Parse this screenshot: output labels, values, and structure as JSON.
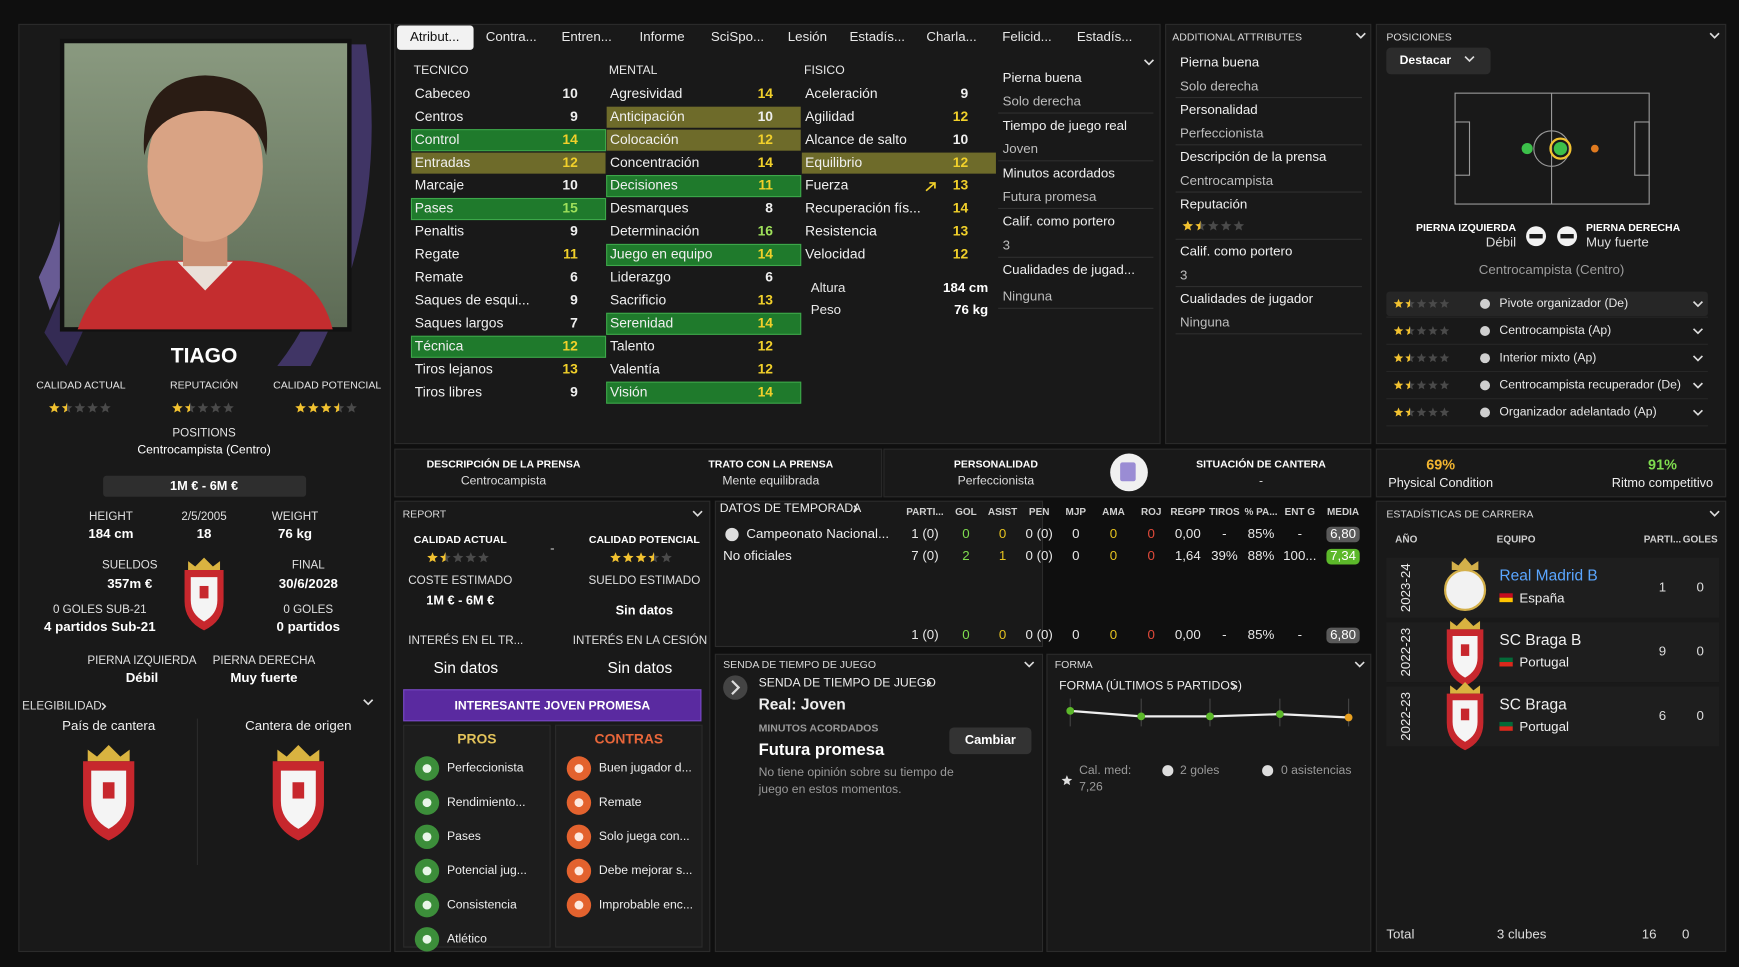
{
  "tabs": [
    "Atribut...",
    "Contra...",
    "Entren...",
    "Informe",
    "SciSpo...",
    "Lesión",
    "Estadís...",
    "Charla...",
    "Felicid...",
    "Estadís..."
  ],
  "profile": {
    "name": "TIAGO",
    "ratings": [
      {
        "label": "CALIDAD ACTUAL",
        "stars": 1.5
      },
      {
        "label": "REPUTACIÓN",
        "stars": 1.5
      },
      {
        "label": "CALIDAD POTENCIAL",
        "stars": 3.5
      }
    ],
    "positions_label": "POSITIONS",
    "position": "Centrocampista (Centro)",
    "value": "1M € - 6M €",
    "facts": [
      {
        "label": "HEIGHT",
        "value": "184 cm"
      },
      {
        "label": "2/5/2005",
        "value": "18"
      },
      {
        "label": "WEIGHT",
        "value": "76 kg"
      },
      {
        "label": "SUELDOS",
        "value": "357m €"
      },
      {
        "label": "FINAL",
        "value": "30/6/2028"
      },
      {
        "label": "0 GOLES SUB-21",
        "value": "4 partidos Sub-21"
      },
      {
        "label": "0 GOLES",
        "value": "0 partidos"
      },
      {
        "label": "PIERNA IZQUIERDA",
        "value": "Débil"
      },
      {
        "label": "PIERNA DERECHA",
        "value": "Muy fuerte"
      }
    ],
    "eligibility": "ELEGIBILIDAD",
    "youth_nation": "País de cantera",
    "youth_club": "Cantera de origen"
  },
  "attributes": [
    {
      "title": "TECNICO",
      "items": [
        {
          "name": "Cabeceo",
          "value": 10
        },
        {
          "name": "Centros",
          "value": 9
        },
        {
          "name": "Control",
          "value": 14,
          "highlight": "#1f7a2c"
        },
        {
          "name": "Entradas",
          "value": 12,
          "highlight": "#6e6b2a"
        },
        {
          "name": "Marcaje",
          "value": 10
        },
        {
          "name": "Pases",
          "value": 15,
          "highlight": "#1f7a2c"
        },
        {
          "name": "Penaltis",
          "value": 9
        },
        {
          "name": "Regate",
          "value": 11
        },
        {
          "name": "Remate",
          "value": 6
        },
        {
          "name": "Saques de esqui...",
          "value": 9
        },
        {
          "name": "Saques largos",
          "value": 7
        },
        {
          "name": "Técnica",
          "value": 12,
          "highlight": "#1f7a2c"
        },
        {
          "name": "Tiros lejanos",
          "value": 13
        },
        {
          "name": "Tiros libres",
          "value": 9
        }
      ]
    },
    {
      "title": "MENTAL",
      "items": [
        {
          "name": "Agresividad",
          "value": 14
        },
        {
          "name": "Anticipación",
          "value": 10,
          "highlight": "#6e6b2a"
        },
        {
          "name": "Colocación",
          "value": 12,
          "highlight": "#6e6b2a"
        },
        {
          "name": "Concentración",
          "value": 14
        },
        {
          "name": "Decisiones",
          "value": 11,
          "highlight": "#1f7a2c"
        },
        {
          "name": "Desmarques",
          "value": 8
        },
        {
          "name": "Determinación",
          "value": 16
        },
        {
          "name": "Juego en equipo",
          "value": 14,
          "highlight": "#1f7a2c"
        },
        {
          "name": "Liderazgo",
          "value": 6
        },
        {
          "name": "Sacrificio",
          "value": 13
        },
        {
          "name": "Serenidad",
          "value": 14,
          "highlight": "#1f7a2c"
        },
        {
          "name": "Talento",
          "value": 12
        },
        {
          "name": "Valentía",
          "value": 12
        },
        {
          "name": "Visión",
          "value": 14,
          "highlight": "#1f7a2c"
        }
      ]
    },
    {
      "title": "FISICO",
      "items": [
        {
          "name": "Aceleración",
          "value": 9
        },
        {
          "name": "Agilidad",
          "value": 12
        },
        {
          "name": "Alcance de salto",
          "value": 10
        },
        {
          "name": "Equilibrio",
          "value": 12,
          "highlight": "#6e6b2a"
        },
        {
          "name": "Fuerza",
          "value": 13
        },
        {
          "name": "Recuperación fís...",
          "value": 14
        },
        {
          "name": "Resistencia",
          "value": 13
        },
        {
          "name": "Velocidad",
          "value": 12
        }
      ],
      "body": [
        {
          "label": "Altura",
          "value": "184 cm"
        },
        {
          "label": "Peso",
          "value": "76 kg"
        }
      ]
    }
  ],
  "traits": [
    {
      "label": "Pierna buena",
      "value": "Solo derecha"
    },
    {
      "label": "Tiempo de juego real",
      "value": "Joven"
    },
    {
      "label": "Minutos acordados",
      "value": "Futura promesa"
    },
    {
      "label": "Calif. como portero",
      "value": "3"
    },
    {
      "label": "Cualidades de jugad...",
      "value": "Ninguna"
    }
  ],
  "additional": {
    "title": "ADDITIONAL ATTRIBUTES",
    "items": [
      {
        "label": "Pierna buena",
        "value": "Solo derecha"
      },
      {
        "label": "Personalidad",
        "value": "Perfeccionista"
      },
      {
        "label": "Descripción de la prensa",
        "value": "Centrocampista"
      },
      {
        "label": "Reputación",
        "stars": 1.5
      },
      {
        "label": "Calif. como portero",
        "value": "3"
      },
      {
        "label": "Cualidades de jugador",
        "value": "Ninguna"
      }
    ]
  },
  "positions": {
    "title": "POSICIONES",
    "button": "Destacar",
    "left_foot_label": "PIERNA IZQUIERDA",
    "left_foot": "Débil",
    "right_foot_label": "PIERNA DERECHA",
    "right_foot": "Muy fuerte",
    "position": "Centrocampista (Centro)",
    "roles": [
      {
        "name": "Pivote organizador (De)",
        "stars": 1.5
      },
      {
        "name": "Centrocampista (Ap)",
        "stars": 1.5
      },
      {
        "name": "Interior mixto (Ap)",
        "stars": 1.5
      },
      {
        "name": "Centrocampista recuperador (De)",
        "stars": 1.5
      },
      {
        "name": "Organizador adelantado (Ap)",
        "stars": 1.5
      }
    ]
  },
  "press": [
    {
      "label": "DESCRIPCIÓN DE LA PRENSA",
      "value": "Centrocampista"
    },
    {
      "label": "TRATO CON LA PRENSA",
      "value": "Mente equilibrada"
    },
    {
      "label": "PERSONALIDAD",
      "value": "Perfeccionista"
    },
    {
      "label": "SITUACIÓN DE CANTERA",
      "value": "-"
    }
  ],
  "condition": [
    {
      "value": "69%",
      "label": "Physical Condition"
    },
    {
      "value": "91%",
      "label": "Ritmo competitivo"
    }
  ],
  "report": {
    "title": "REPORT",
    "current_label": "CALIDAD ACTUAL",
    "current_stars": 1.5,
    "separator": "-",
    "potential_label": "CALIDAD POTENCIAL",
    "potential_stars": 3.5,
    "fields": [
      {
        "label": "COSTE ESTIMADO",
        "value": "1M € - 6M €"
      },
      {
        "label": "SUELDO ESTIMADO",
        "value": "Sin datos"
      },
      {
        "label": "INTERÉS EN EL TR...",
        "value": "Sin datos"
      },
      {
        "label": "INTERÉS EN LA CESIÓN",
        "value": "Sin datos"
      }
    ],
    "banner": "INTERESANTE JOVEN PROMESA",
    "pros_title": "PROS",
    "pros": [
      "Perfeccionista",
      "Rendimiento...",
      "Pases",
      "Potencial jug...",
      "Consistencia",
      "Atlético"
    ],
    "cons_title": "CONTRAS",
    "cons": [
      "Buen jugador d...",
      "Remate",
      "Solo juega con...",
      "Debe mejorar s...",
      "Improbable enc..."
    ]
  },
  "season": {
    "title": "DATOS DE TEMPORADA",
    "headers": [
      "PARTI...",
      "GOL",
      "ASIST",
      "PEN",
      "MJP",
      "AMA",
      "ROJ",
      "REGPP",
      "TIROS",
      "% PA...",
      "ENT G",
      "MEDIA"
    ],
    "rows": [
      {
        "name": "Campeonato Nacional...",
        "cells": [
          "1 (0)",
          "0",
          "0",
          "0 (0)",
          "0",
          "0",
          "0",
          "0,00",
          "-",
          "85%",
          "-",
          "6,80"
        ],
        "media_color": "#5a5a5a"
      },
      {
        "name": "No oficiales",
        "cells": [
          "7 (0)",
          "2",
          "1",
          "0 (0)",
          "0",
          "0",
          "0",
          "1,64",
          "39%",
          "88%",
          "100...",
          "7,34"
        ],
        "media_color": "#5cb82a"
      }
    ],
    "total": {
      "cells": [
        "1 (0)",
        "0",
        "0",
        "0 (0)",
        "0",
        "0",
        "0",
        "0,00",
        "-",
        "85%",
        "-",
        "6,80"
      ],
      "media_color": "#5a5a5a"
    }
  },
  "playtime": {
    "title": "SENDA DE TIEMPO DE JUEGO",
    "link": "SENDA DE TIEMPO DE JUEGO",
    "current": "Real: Joven",
    "agreed_label": "MINUTOS ACORDADOS",
    "agreed": "Futura promesa",
    "button": "Cambiar",
    "note": [
      "No tiene opinión sobre su tiempo de",
      "juego en estos momentos."
    ]
  },
  "form": {
    "title": "FORMA",
    "subtitle": "FORMA (ÚLTIMOS 5 PARTIDOS)",
    "avg_label": "Cal. med:",
    "avg": "7,26",
    "goals": "2 goles",
    "assists": "0 asistencias"
  },
  "career": {
    "title": "ESTADÍSTICAS DE CARRERA",
    "headers": [
      "AÑO",
      "EQUIPO",
      "PARTI...",
      "GOLES"
    ],
    "rows": [
      {
        "season": "2023-24",
        "club": "Real Madrid B",
        "nation": "España",
        "apps": 1,
        "goals": 0
      },
      {
        "season": "2022-23",
        "club": "SC Braga B",
        "nation": "Portugal",
        "apps": 9,
        "goals": 0
      },
      {
        "season": "2022-23",
        "club": "SC Braga",
        "nation": "Portugal",
        "apps": 6,
        "goals": 0
      }
    ],
    "total_label": "Total",
    "total_clubs": "3 clubes",
    "total_apps": 16,
    "total_goals": 0
  }
}
